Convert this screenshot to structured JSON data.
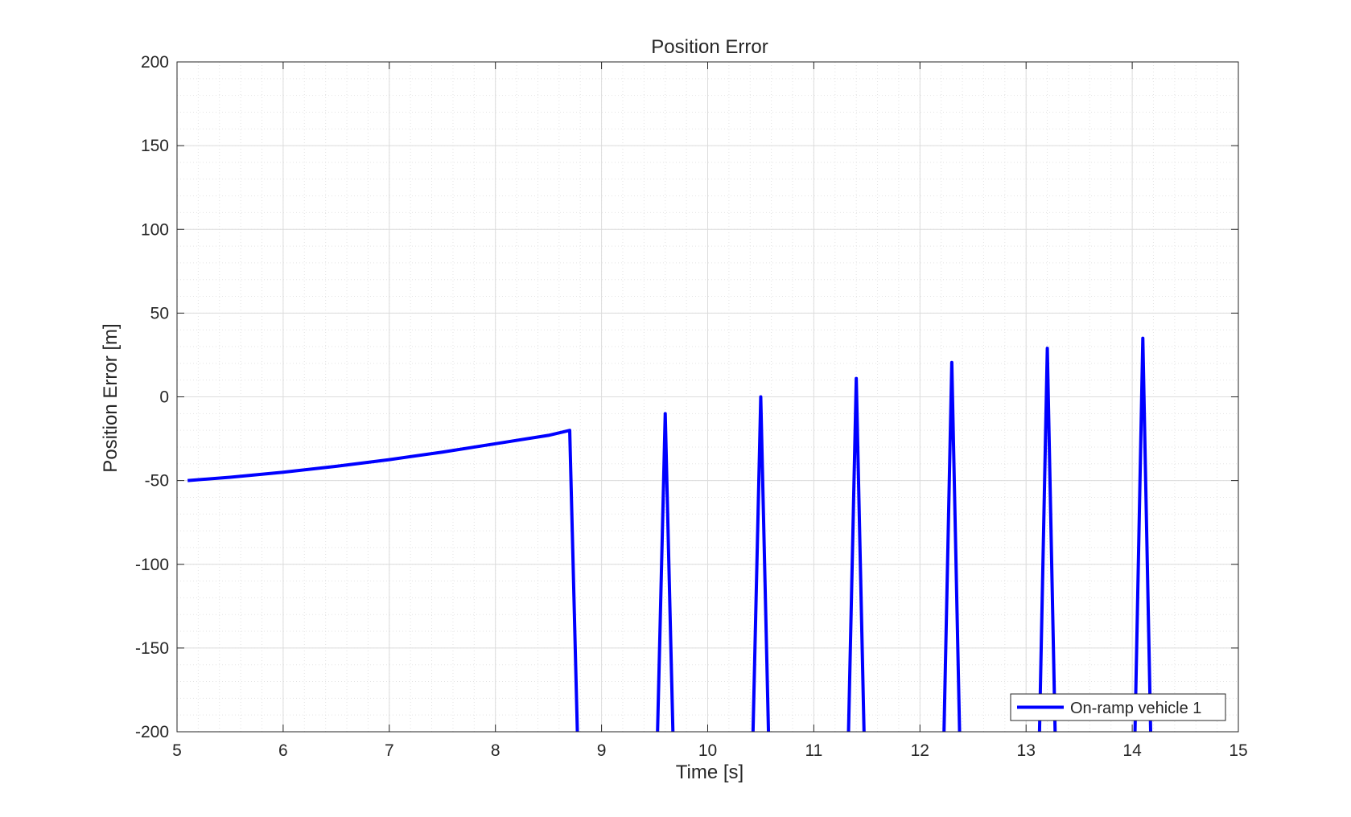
{
  "chart_data": {
    "type": "line",
    "title": "Position Error",
    "xlabel": "Time [s]",
    "ylabel": "Position Error [m]",
    "xlim": [
      5,
      15
    ],
    "ylim": [
      -200,
      200
    ],
    "xticks": [
      5,
      6,
      7,
      8,
      9,
      10,
      11,
      12,
      13,
      14,
      15
    ],
    "yticks": [
      -200,
      -150,
      -100,
      -50,
      0,
      50,
      100,
      150,
      200
    ],
    "grid": true,
    "minor_grid": true,
    "legend_position": "bottom-right",
    "series": [
      {
        "name": "On-ramp vehicle 1",
        "color": "#0000ff",
        "x": [
          5.1,
          5.5,
          6.0,
          6.5,
          7.0,
          7.5,
          8.0,
          8.5,
          8.7,
          8.78,
          9.52,
          9.6,
          9.68,
          10.42,
          10.5,
          10.58,
          11.32,
          11.4,
          11.48,
          12.22,
          12.3,
          12.38,
          13.12,
          13.2,
          13.28,
          14.02,
          14.1,
          14.18
        ],
        "y": [
          -50,
          -48,
          -45,
          -41.5,
          -37.5,
          -33,
          -28,
          -23,
          -20,
          -220,
          -220,
          -10,
          -220,
          -220,
          0,
          -220,
          -220,
          11,
          -220,
          -220,
          20.5,
          -220,
          -220,
          29,
          -220,
          -220,
          35,
          -220
        ]
      }
    ]
  }
}
